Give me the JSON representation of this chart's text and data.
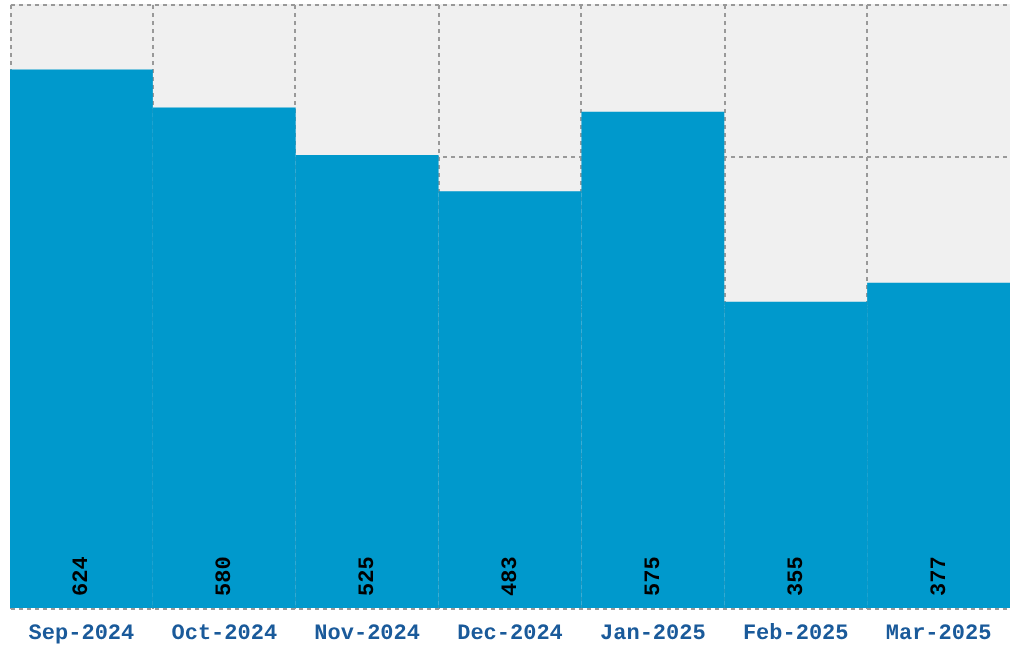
{
  "chart_data": {
    "type": "bar",
    "categories": [
      "Sep-2024",
      "Oct-2024",
      "Nov-2024",
      "Dec-2024",
      "Jan-2025",
      "Feb-2025",
      "Mar-2025"
    ],
    "values": [
      624,
      580,
      525,
      483,
      575,
      355,
      377
    ],
    "color": "#0099cc",
    "ylim": [
      0,
      700
    ],
    "yticks": [
      {
        "value": 0,
        "label": null
      },
      {
        "value": 175,
        "label": null
      },
      {
        "value": 350,
        "label": null
      },
      {
        "value": 525,
        "label": null
      },
      {
        "value": 700,
        "label": null
      }
    ],
    "grid": true,
    "data_labels": true,
    "tick_labels": "x"
  }
}
